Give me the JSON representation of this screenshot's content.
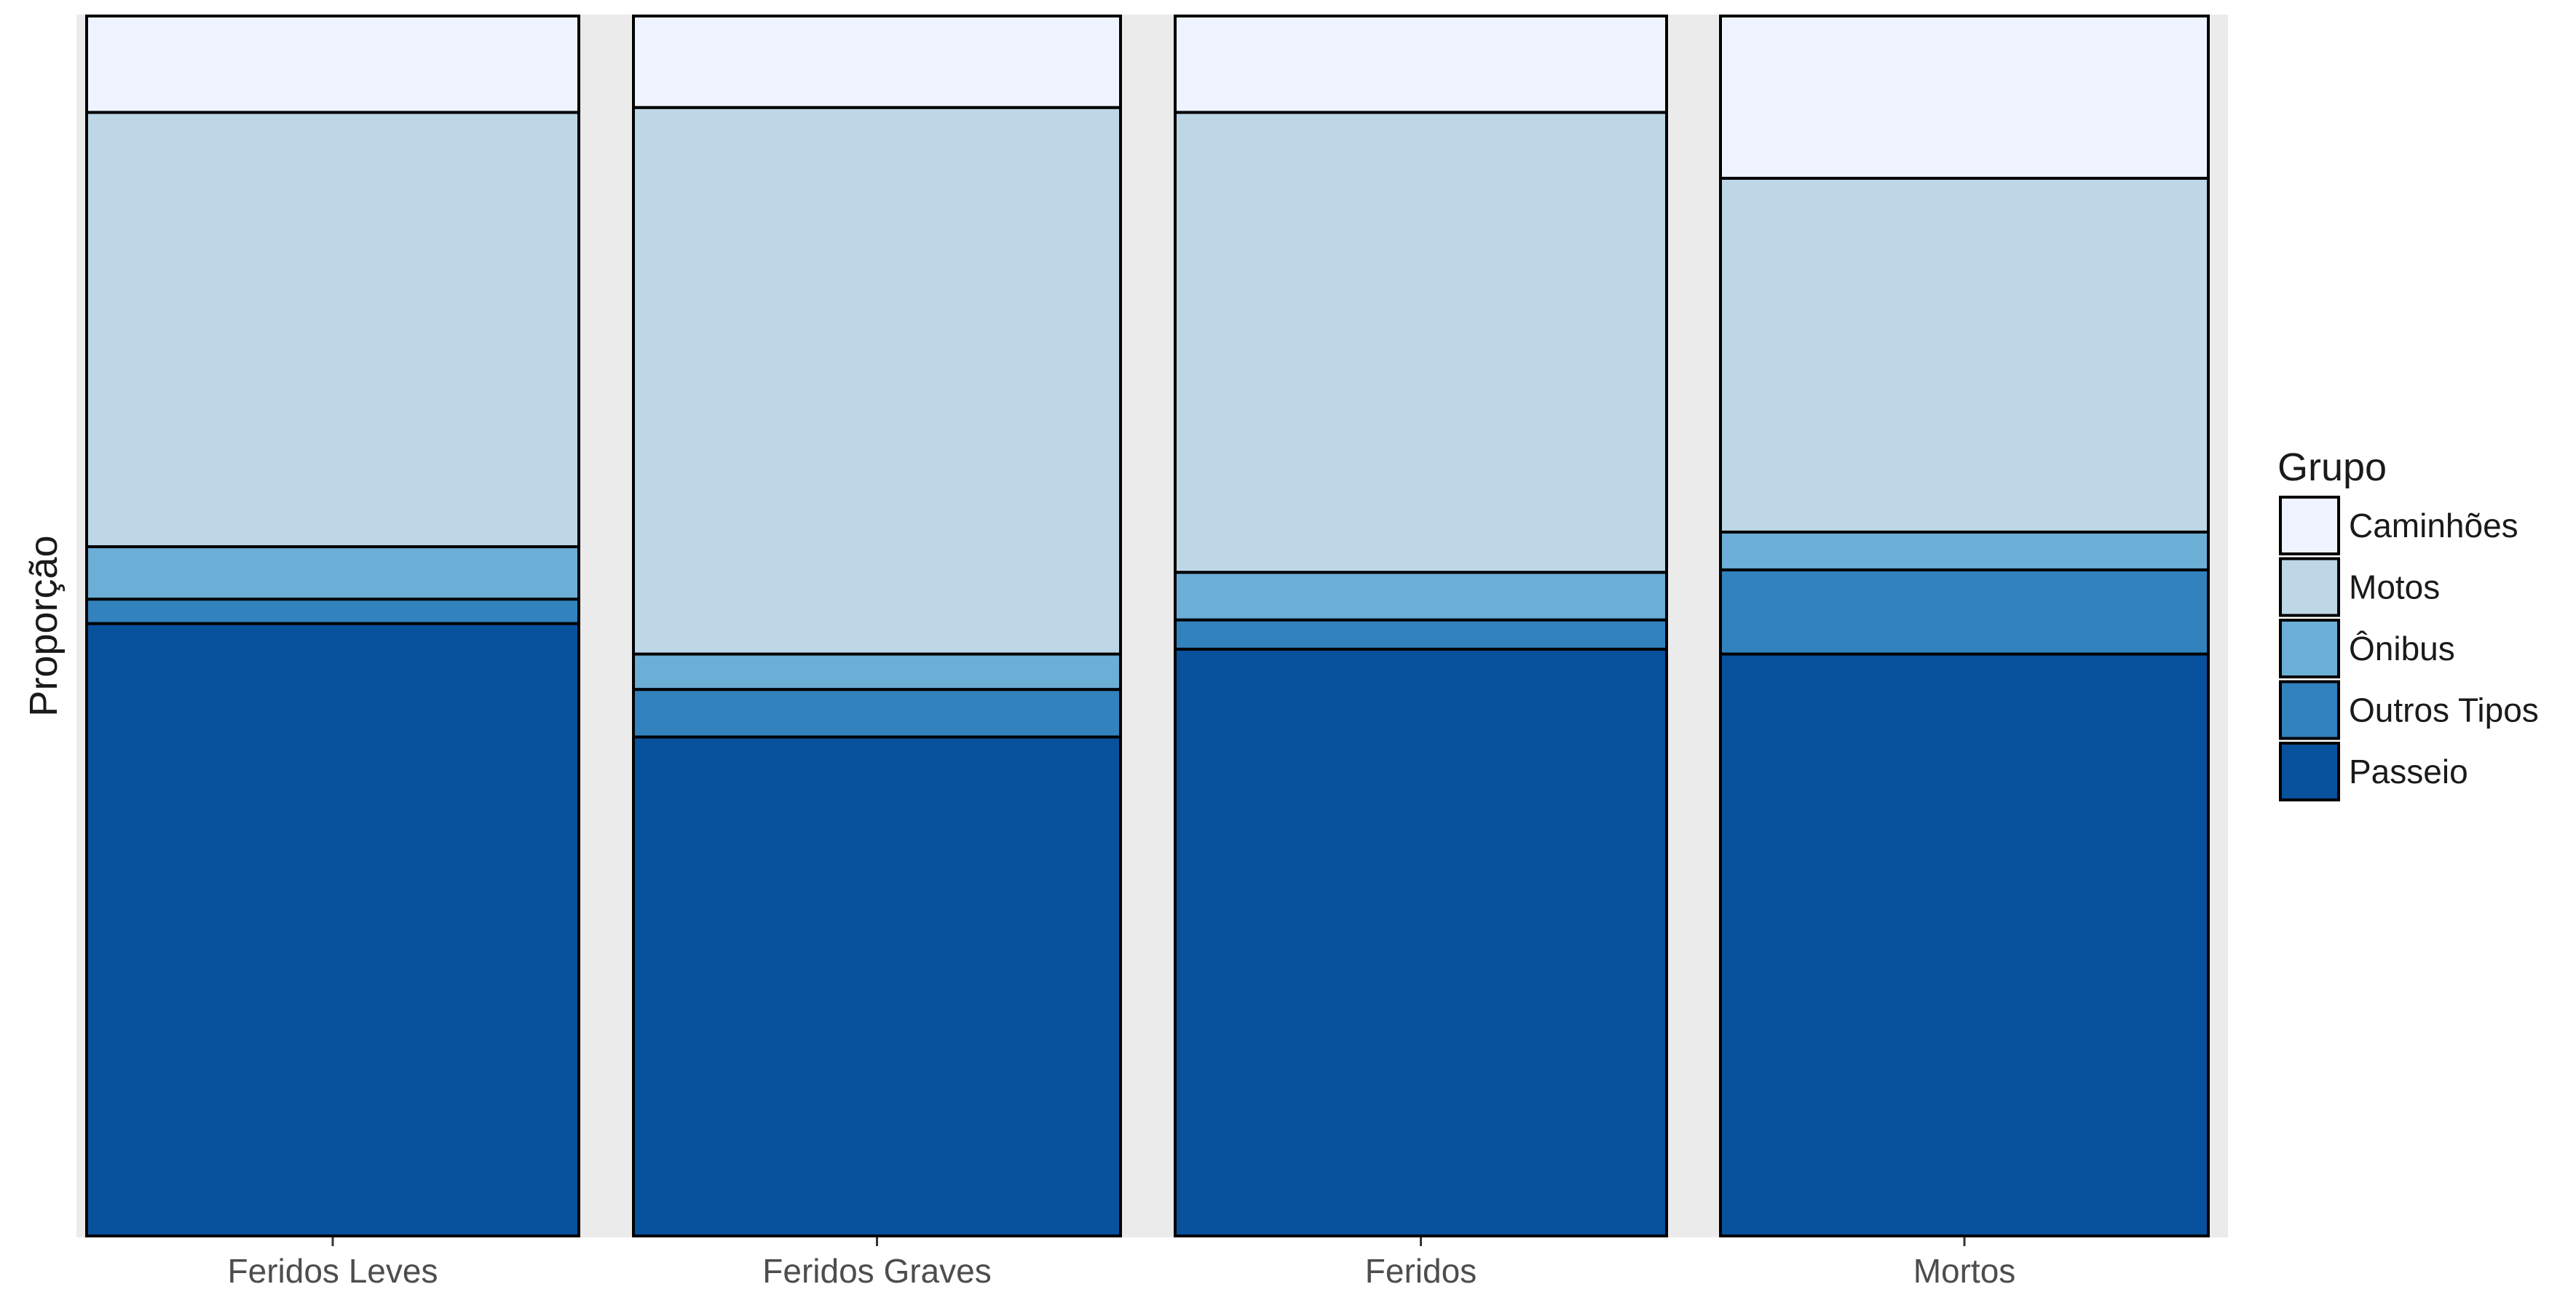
{
  "chart_data": {
    "type": "bar",
    "stacked": "proportional",
    "orientation": "vertical",
    "title": "",
    "xlabel": "",
    "ylabel": "Proporção",
    "ylim": [
      0,
      1
    ],
    "y_tick_labels_shown": false,
    "grid": false,
    "panel_background": "#ebebeb",
    "categories": [
      "Feridos Leves",
      "Feridos Graves",
      "Feridos",
      "Mortos"
    ],
    "legend": {
      "title": "Grupo",
      "position": "right",
      "order": [
        "Caminhões",
        "Motos",
        "Ônibus",
        "Outros Tipos",
        "Passeio"
      ]
    },
    "series": [
      {
        "name": "Passeio",
        "color": "#08519c",
        "values": [
          0.502,
          0.409,
          0.481,
          0.477
        ]
      },
      {
        "name": "Outros Tipos",
        "color": "#3182bd",
        "values": [
          0.02,
          0.039,
          0.024,
          0.069
        ]
      },
      {
        "name": "Ônibus",
        "color": "#6baed6",
        "values": [
          0.043,
          0.029,
          0.039,
          0.031
        ]
      },
      {
        "name": "Motos",
        "color": "#bdd7e7",
        "values": [
          0.356,
          0.448,
          0.377,
          0.29
        ]
      },
      {
        "name": "Caminhões",
        "color": "#eff3ff",
        "values": [
          0.079,
          0.075,
          0.079,
          0.133
        ]
      }
    ]
  }
}
